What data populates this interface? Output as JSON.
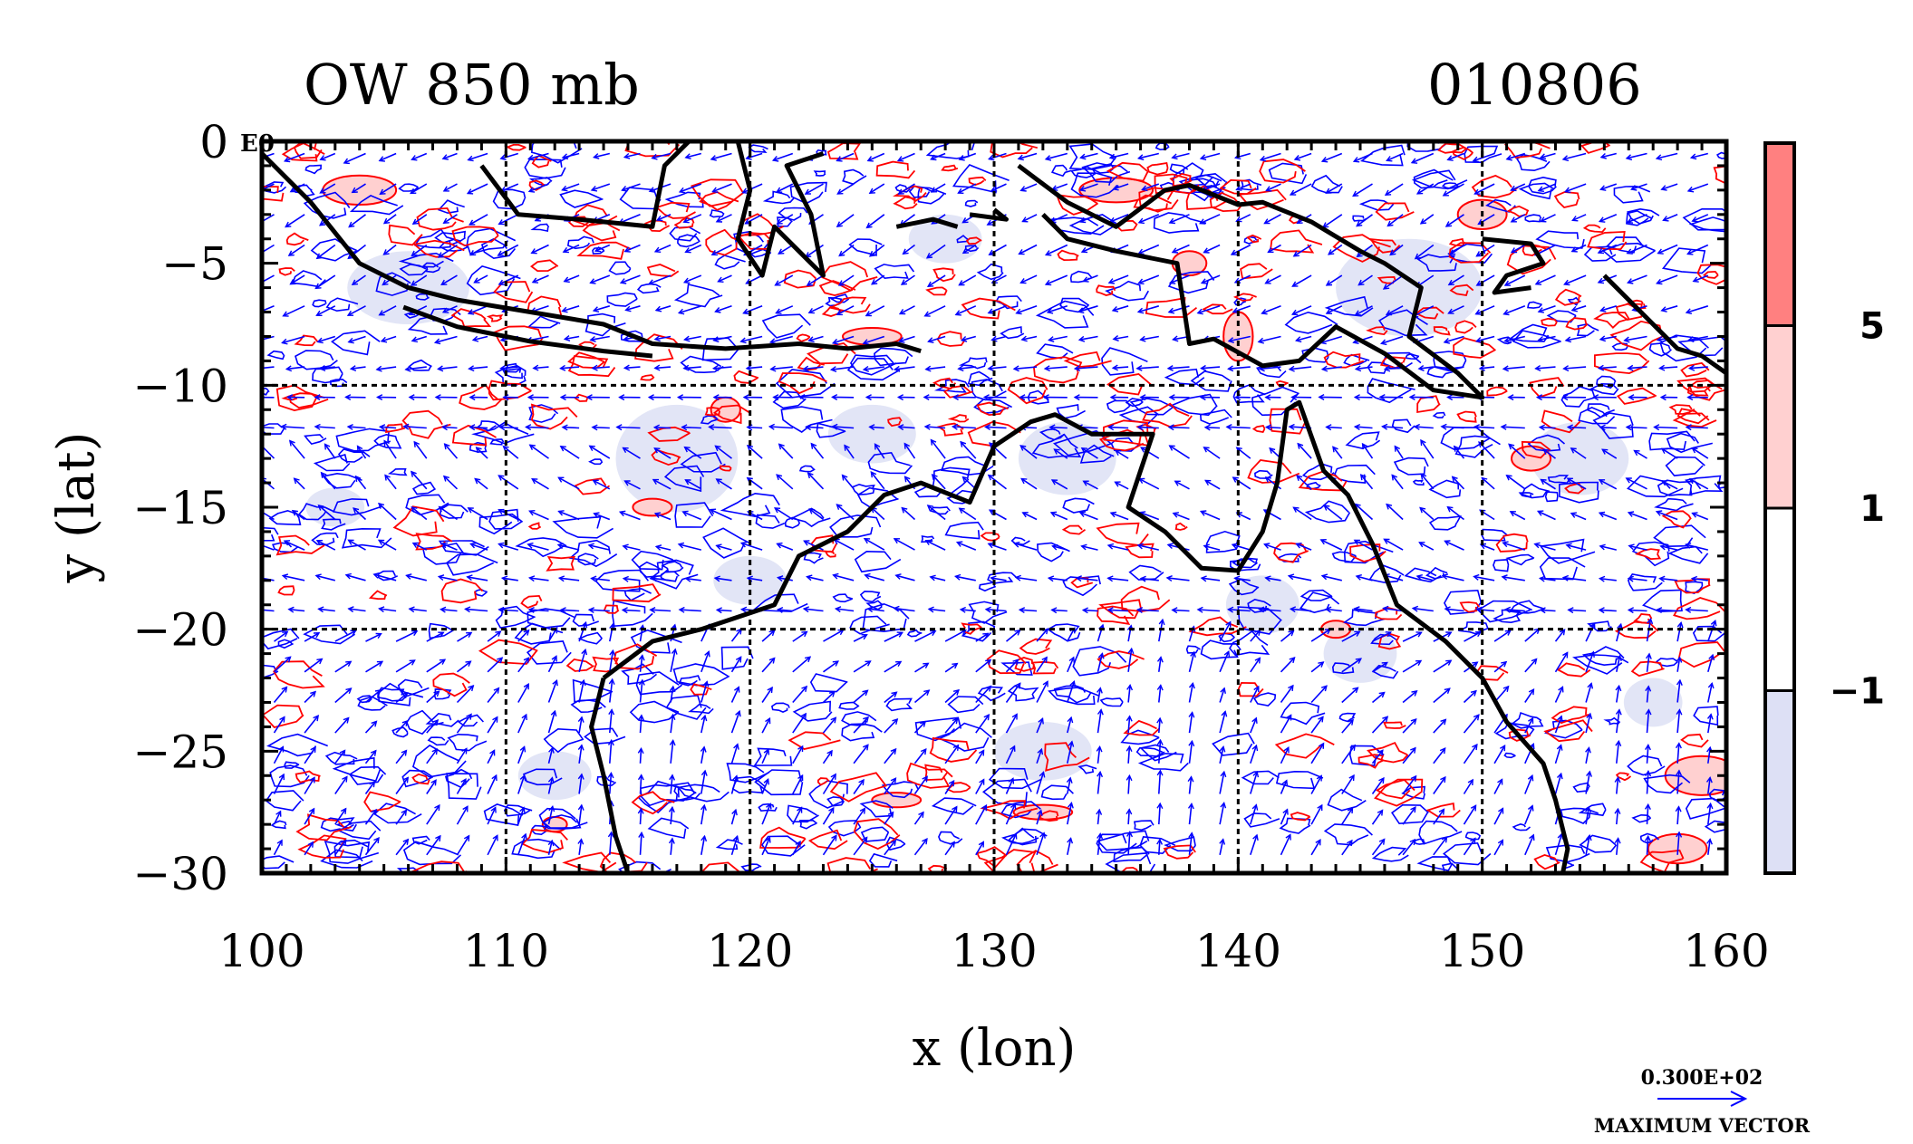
{
  "chart_data": {
    "type": "contour",
    "title_left": "OW 850 mb",
    "title_right": "010806",
    "xlabel": "x (lon)",
    "ylabel": "y (lat)",
    "xlim": [
      100,
      160
    ],
    "ylim": [
      -30,
      0
    ],
    "x_ticks": [
      100,
      110,
      120,
      130,
      140,
      150,
      160
    ],
    "x_tick_labels": [
      "100",
      "110",
      "120",
      "130",
      "140",
      "150",
      "160"
    ],
    "y_ticks": [
      0,
      -5,
      -10,
      -15,
      -20,
      -25,
      -30
    ],
    "y_tick_labels": [
      "0",
      "−5",
      "−10",
      "−15",
      "−20",
      "−25",
      "−30"
    ],
    "corner_label": "E0",
    "grid_lon": [
      110,
      120,
      130,
      140,
      150
    ],
    "grid_lat": [
      -10,
      -20
    ],
    "colorbar": {
      "levels": [
        -1,
        1,
        5
      ],
      "level_labels": [
        "−1",
        "1",
        "5"
      ],
      "colors": [
        "#dde0f5",
        "#ffffff",
        "#ffd0d0",
        "#ff8080"
      ]
    },
    "contour_colors": {
      "positive": "#ff0000",
      "negative": "#0000ff"
    },
    "vector_color": "#0000ff",
    "reference_vector": {
      "value_label": "0.300E+02",
      "caption": "MAXIMUM VECTOR"
    }
  }
}
